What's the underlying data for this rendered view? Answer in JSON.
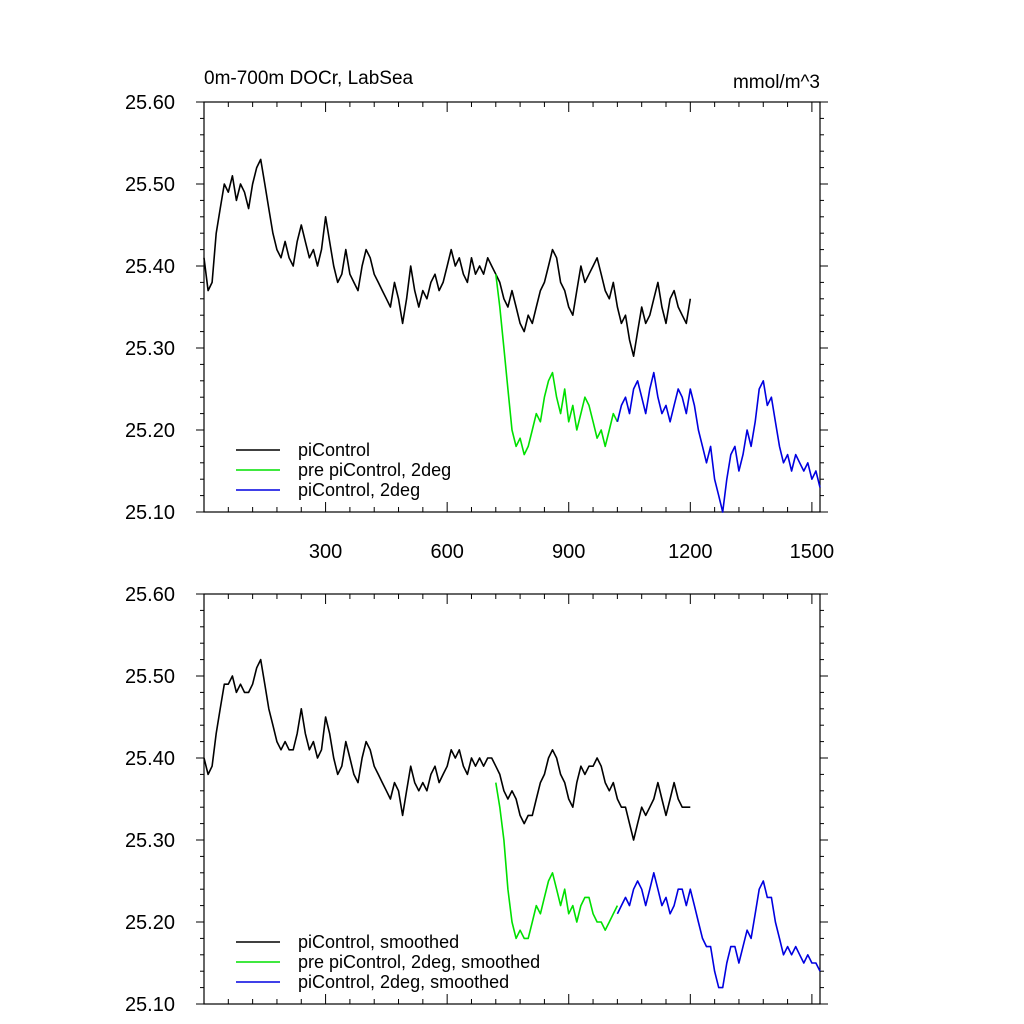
{
  "chart_data": [
    {
      "type": "line",
      "title": "0m-700m DOCr, LabSea",
      "units": "mmol/m^3",
      "xlim": [
        0,
        1520
      ],
      "ylim": [
        25.1,
        25.6
      ],
      "xticks": [
        300,
        600,
        900,
        1200,
        1500
      ],
      "xtick_labels": [
        "300",
        "600",
        "900",
        "1200",
        "1500"
      ],
      "yticks": [
        25.1,
        25.2,
        25.3,
        25.4,
        25.5,
        25.6
      ],
      "ytick_labels": [
        "25.10",
        "25.20",
        "25.30",
        "25.40",
        "25.50",
        "25.60"
      ],
      "legend_position": "bottom-left",
      "grid": false,
      "series": [
        {
          "name": "piControl",
          "color": "#000000",
          "x": [
            0,
            10,
            20,
            30,
            40,
            50,
            60,
            70,
            80,
            90,
            100,
            110,
            120,
            130,
            140,
            150,
            160,
            170,
            180,
            190,
            200,
            210,
            220,
            230,
            240,
            250,
            260,
            270,
            280,
            290,
            300,
            310,
            320,
            330,
            340,
            350,
            360,
            370,
            380,
            390,
            400,
            410,
            420,
            430,
            440,
            450,
            460,
            470,
            480,
            490,
            500,
            510,
            520,
            530,
            540,
            550,
            560,
            570,
            580,
            590,
            600,
            610,
            620,
            630,
            640,
            650,
            660,
            670,
            680,
            690,
            700,
            710,
            720,
            730,
            740,
            750,
            760,
            770,
            780,
            790,
            800,
            810,
            820,
            830,
            840,
            850,
            860,
            870,
            880,
            890,
            900,
            910,
            920,
            930,
            940,
            950,
            960,
            970,
            980,
            990,
            1000,
            1010,
            1020,
            1030,
            1040,
            1050,
            1060,
            1070,
            1080,
            1090,
            1100,
            1110,
            1120,
            1130,
            1140,
            1150,
            1160,
            1170,
            1180,
            1190,
            1200
          ],
          "values": [
            25.41,
            25.37,
            25.38,
            25.44,
            25.47,
            25.5,
            25.49,
            25.51,
            25.48,
            25.5,
            25.49,
            25.47,
            25.5,
            25.52,
            25.53,
            25.5,
            25.47,
            25.44,
            25.42,
            25.41,
            25.43,
            25.41,
            25.4,
            25.43,
            25.45,
            25.43,
            25.41,
            25.42,
            25.4,
            25.42,
            25.46,
            25.43,
            25.4,
            25.38,
            25.39,
            25.42,
            25.39,
            25.38,
            25.37,
            25.4,
            25.42,
            25.41,
            25.39,
            25.38,
            25.37,
            25.36,
            25.35,
            25.38,
            25.36,
            25.33,
            25.36,
            25.4,
            25.37,
            25.35,
            25.37,
            25.36,
            25.38,
            25.39,
            25.37,
            25.38,
            25.4,
            25.42,
            25.4,
            25.41,
            25.39,
            25.38,
            25.41,
            25.39,
            25.4,
            25.39,
            25.41,
            25.4,
            25.39,
            25.38,
            25.36,
            25.35,
            25.37,
            25.35,
            25.33,
            25.32,
            25.34,
            25.33,
            25.35,
            25.37,
            25.38,
            25.4,
            25.42,
            25.41,
            25.38,
            25.37,
            25.35,
            25.34,
            25.37,
            25.4,
            25.38,
            25.39,
            25.4,
            25.41,
            25.39,
            25.37,
            25.36,
            25.38,
            25.35,
            25.33,
            25.34,
            25.31,
            25.29,
            25.32,
            25.35,
            25.33,
            25.34,
            25.36,
            25.38,
            25.35,
            25.33,
            25.36,
            25.37,
            25.35,
            25.34,
            25.33,
            25.36
          ]
        },
        {
          "name": "pre piControl, 2deg",
          "color": "#00e000",
          "x": [
            720,
            730,
            740,
            750,
            760,
            770,
            780,
            790,
            800,
            810,
            820,
            830,
            840,
            850,
            860,
            870,
            880,
            890,
            900,
            910,
            920,
            930,
            940,
            950,
            960,
            970,
            980,
            990,
            1000,
            1010,
            1020
          ],
          "values": [
            25.39,
            25.35,
            25.3,
            25.25,
            25.2,
            25.18,
            25.19,
            25.17,
            25.18,
            25.2,
            25.22,
            25.21,
            25.24,
            25.26,
            25.27,
            25.24,
            25.22,
            25.25,
            25.21,
            25.23,
            25.2,
            25.22,
            25.24,
            25.23,
            25.21,
            25.19,
            25.2,
            25.18,
            25.2,
            25.22,
            25.21
          ]
        },
        {
          "name": "piControl, 2deg",
          "color": "#0000e0",
          "x": [
            1020,
            1030,
            1040,
            1050,
            1060,
            1070,
            1080,
            1090,
            1100,
            1110,
            1120,
            1130,
            1140,
            1150,
            1160,
            1170,
            1180,
            1190,
            1200,
            1210,
            1220,
            1230,
            1240,
            1250,
            1260,
            1270,
            1280,
            1290,
            1300,
            1310,
            1320,
            1330,
            1340,
            1350,
            1360,
            1370,
            1380,
            1390,
            1400,
            1410,
            1420,
            1430,
            1440,
            1450,
            1460,
            1470,
            1480,
            1490,
            1500,
            1510,
            1520
          ],
          "values": [
            25.21,
            25.23,
            25.24,
            25.22,
            25.25,
            25.26,
            25.24,
            25.22,
            25.25,
            25.27,
            25.24,
            25.22,
            25.23,
            25.21,
            25.23,
            25.25,
            25.24,
            25.22,
            25.25,
            25.23,
            25.2,
            25.18,
            25.16,
            25.18,
            25.14,
            25.12,
            25.1,
            25.14,
            25.17,
            25.18,
            25.15,
            25.17,
            25.2,
            25.18,
            25.21,
            25.25,
            25.26,
            25.23,
            25.24,
            25.21,
            25.18,
            25.16,
            25.17,
            25.15,
            25.17,
            25.16,
            25.15,
            25.16,
            25.14,
            25.15,
            25.13
          ]
        }
      ]
    },
    {
      "type": "line",
      "xlim": [
        0,
        1520
      ],
      "ylim": [
        25.1,
        25.6
      ],
      "xticks": [
        300,
        600,
        900,
        1200,
        1500
      ],
      "yticks": [
        25.1,
        25.2,
        25.3,
        25.4,
        25.5,
        25.6
      ],
      "ytick_labels": [
        "25.10",
        "25.20",
        "25.30",
        "25.40",
        "25.50",
        "25.60"
      ],
      "legend_position": "bottom-left",
      "grid": false,
      "series": [
        {
          "name": "piControl, smoothed",
          "color": "#000000",
          "x": [
            0,
            10,
            20,
            30,
            40,
            50,
            60,
            70,
            80,
            90,
            100,
            110,
            120,
            130,
            140,
            150,
            160,
            170,
            180,
            190,
            200,
            210,
            220,
            230,
            240,
            250,
            260,
            270,
            280,
            290,
            300,
            310,
            320,
            330,
            340,
            350,
            360,
            370,
            380,
            390,
            400,
            410,
            420,
            430,
            440,
            450,
            460,
            470,
            480,
            490,
            500,
            510,
            520,
            530,
            540,
            550,
            560,
            570,
            580,
            590,
            600,
            610,
            620,
            630,
            640,
            650,
            660,
            670,
            680,
            690,
            700,
            710,
            720,
            730,
            740,
            750,
            760,
            770,
            780,
            790,
            800,
            810,
            820,
            830,
            840,
            850,
            860,
            870,
            880,
            890,
            900,
            910,
            920,
            930,
            940,
            950,
            960,
            970,
            980,
            990,
            1000,
            1010,
            1020,
            1030,
            1040,
            1050,
            1060,
            1070,
            1080,
            1090,
            1100,
            1110,
            1120,
            1130,
            1140,
            1150,
            1160,
            1170,
            1180,
            1190,
            1200
          ],
          "values": [
            25.4,
            25.38,
            25.39,
            25.43,
            25.46,
            25.49,
            25.49,
            25.5,
            25.48,
            25.49,
            25.48,
            25.48,
            25.49,
            25.51,
            25.52,
            25.49,
            25.46,
            25.44,
            25.42,
            25.41,
            25.42,
            25.41,
            25.41,
            25.43,
            25.46,
            25.43,
            25.41,
            25.42,
            25.4,
            25.41,
            25.45,
            25.43,
            25.4,
            25.38,
            25.39,
            25.42,
            25.4,
            25.38,
            25.37,
            25.4,
            25.42,
            25.41,
            25.39,
            25.38,
            25.37,
            25.36,
            25.35,
            25.37,
            25.36,
            25.33,
            25.36,
            25.39,
            25.37,
            25.36,
            25.37,
            25.36,
            25.38,
            25.39,
            25.37,
            25.38,
            25.39,
            25.41,
            25.4,
            25.41,
            25.39,
            25.38,
            25.4,
            25.39,
            25.4,
            25.39,
            25.4,
            25.4,
            25.39,
            25.38,
            25.36,
            25.35,
            25.36,
            25.35,
            25.33,
            25.32,
            25.33,
            25.33,
            25.35,
            25.37,
            25.38,
            25.4,
            25.41,
            25.4,
            25.38,
            25.37,
            25.35,
            25.34,
            25.37,
            25.39,
            25.38,
            25.39,
            25.39,
            25.4,
            25.39,
            25.37,
            25.36,
            25.37,
            25.35,
            25.34,
            25.34,
            25.32,
            25.3,
            25.32,
            25.34,
            25.33,
            25.34,
            25.35,
            25.37,
            25.35,
            25.33,
            25.35,
            25.37,
            25.35,
            25.34,
            25.34,
            25.34
          ]
        },
        {
          "name": "pre piControl, 2deg, smoothed",
          "color": "#00e000",
          "x": [
            720,
            730,
            740,
            750,
            760,
            770,
            780,
            790,
            800,
            810,
            820,
            830,
            840,
            850,
            860,
            870,
            880,
            890,
            900,
            910,
            920,
            930,
            940,
            950,
            960,
            970,
            980,
            990,
            1000,
            1010,
            1020
          ],
          "values": [
            25.37,
            25.34,
            25.3,
            25.24,
            25.2,
            25.18,
            25.19,
            25.18,
            25.18,
            25.2,
            25.22,
            25.21,
            25.23,
            25.25,
            25.26,
            25.24,
            25.22,
            25.24,
            25.21,
            25.22,
            25.2,
            25.22,
            25.23,
            25.23,
            25.21,
            25.2,
            25.2,
            25.19,
            25.2,
            25.21,
            25.22
          ]
        },
        {
          "name": "piControl, 2deg, smoothed",
          "color": "#0000e0",
          "x": [
            1020,
            1030,
            1040,
            1050,
            1060,
            1070,
            1080,
            1090,
            1100,
            1110,
            1120,
            1130,
            1140,
            1150,
            1160,
            1170,
            1180,
            1190,
            1200,
            1210,
            1220,
            1230,
            1240,
            1250,
            1260,
            1270,
            1280,
            1290,
            1300,
            1310,
            1320,
            1330,
            1340,
            1350,
            1360,
            1370,
            1380,
            1390,
            1400,
            1410,
            1420,
            1430,
            1440,
            1450,
            1460,
            1470,
            1480,
            1490,
            1500,
            1510,
            1520
          ],
          "values": [
            25.21,
            25.22,
            25.23,
            25.22,
            25.24,
            25.25,
            25.24,
            25.22,
            25.24,
            25.26,
            25.24,
            25.22,
            25.23,
            25.21,
            25.22,
            25.24,
            25.24,
            25.22,
            25.24,
            25.22,
            25.2,
            25.18,
            25.17,
            25.17,
            25.14,
            25.12,
            25.12,
            25.15,
            25.17,
            25.17,
            25.15,
            25.17,
            25.19,
            25.18,
            25.21,
            25.24,
            25.25,
            25.23,
            25.23,
            25.2,
            25.18,
            25.16,
            25.17,
            25.16,
            25.17,
            25.16,
            25.15,
            25.16,
            25.15,
            25.15,
            25.14
          ]
        }
      ]
    }
  ]
}
